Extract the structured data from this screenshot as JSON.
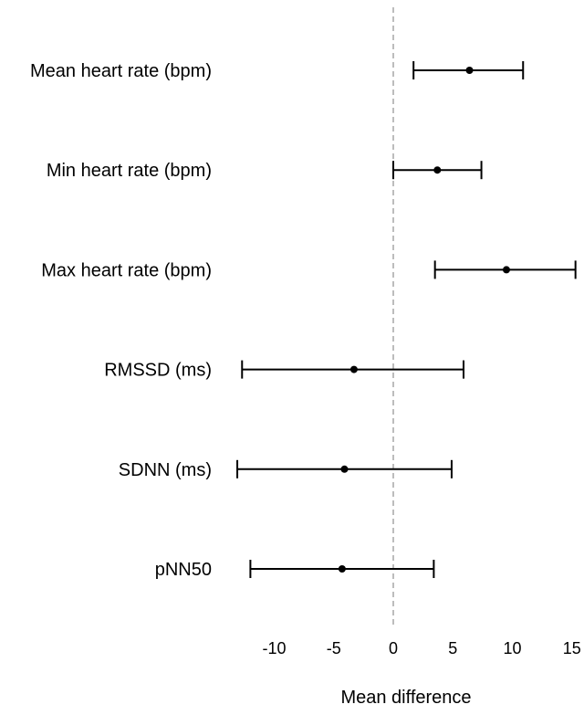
{
  "chart_data": {
    "type": "forest",
    "title": "",
    "xlabel": "Mean difference",
    "ylabel": "",
    "xlim": [
      -13.5,
      15.5
    ],
    "reference_line": {
      "x": 0,
      "style": "dashed"
    },
    "x_ticks": [
      -10,
      -5,
      0,
      5,
      10,
      15
    ],
    "x_tick_labels": [
      "-10",
      "-5",
      "0",
      "5",
      "10",
      "15"
    ],
    "grid": false,
    "legend": "none",
    "categories": [
      "Mean heart rate (bpm)",
      "Min heart rate (bpm)",
      "Max heart rate (bpm)",
      "RMSSD (ms)",
      "SDNN (ms)",
      "pNN50"
    ],
    "rows": [
      {
        "label": "Mean heart rate (bpm)",
        "estimate": 6.4,
        "lower": 1.7,
        "upper": 10.9
      },
      {
        "label": "Min heart rate (bpm)",
        "estimate": 3.7,
        "lower": 0.0,
        "upper": 7.4
      },
      {
        "label": "Max heart rate (bpm)",
        "estimate": 9.5,
        "lower": 3.5,
        "upper": 15.3
      },
      {
        "label": "RMSSD (ms)",
        "estimate": -3.3,
        "lower": -12.7,
        "upper": 5.9
      },
      {
        "label": "SDNN (ms)",
        "estimate": -4.1,
        "lower": -13.1,
        "upper": 4.9
      },
      {
        "label": "pNN50",
        "estimate": -4.3,
        "lower": -12.0,
        "upper": 3.4
      }
    ],
    "colors": {
      "marks": "#000000",
      "reference_line": "#999999"
    }
  }
}
